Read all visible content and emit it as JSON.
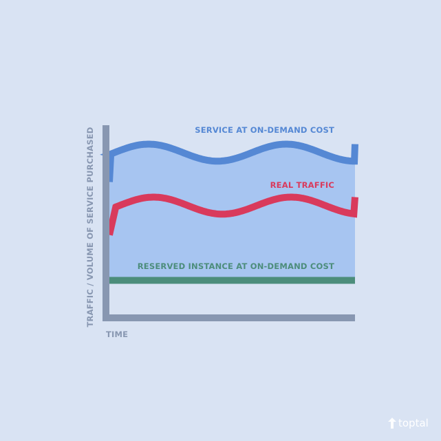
{
  "chart_data": {
    "type": "line",
    "xlabel": "TIME",
    "ylabel": "TRAFFIC / VOLUME OF SERVICE PURCHASED",
    "grid": false,
    "legend": "none",
    "series": [
      {
        "name": "SERVICE AT ON-DEMAND COST",
        "color": "#5588d4",
        "x": [
          0,
          1.6,
          4.4,
          7.2,
          10
        ],
        "y": [
          0.7,
          0.9,
          0.81,
          0.81,
          0.9
        ]
      },
      {
        "name": "REAL TRAFFIC",
        "color": "#d93a5c",
        "x": [
          0,
          1.8,
          4.6,
          7.4,
          10
        ],
        "y": [
          0.42,
          0.62,
          0.53,
          0.53,
          0.62
        ]
      },
      {
        "name": "RESERVED INSTANCE AT ON-DEMAND COST",
        "color": "#4c8d7b",
        "x": [
          0,
          10
        ],
        "y": [
          0.18,
          0.18
        ]
      }
    ],
    "fill_color": "#a7c5f1",
    "axis_color": "#8897b1"
  },
  "brand": {
    "text": "toptal",
    "icon": "toptal-logo-icon"
  }
}
